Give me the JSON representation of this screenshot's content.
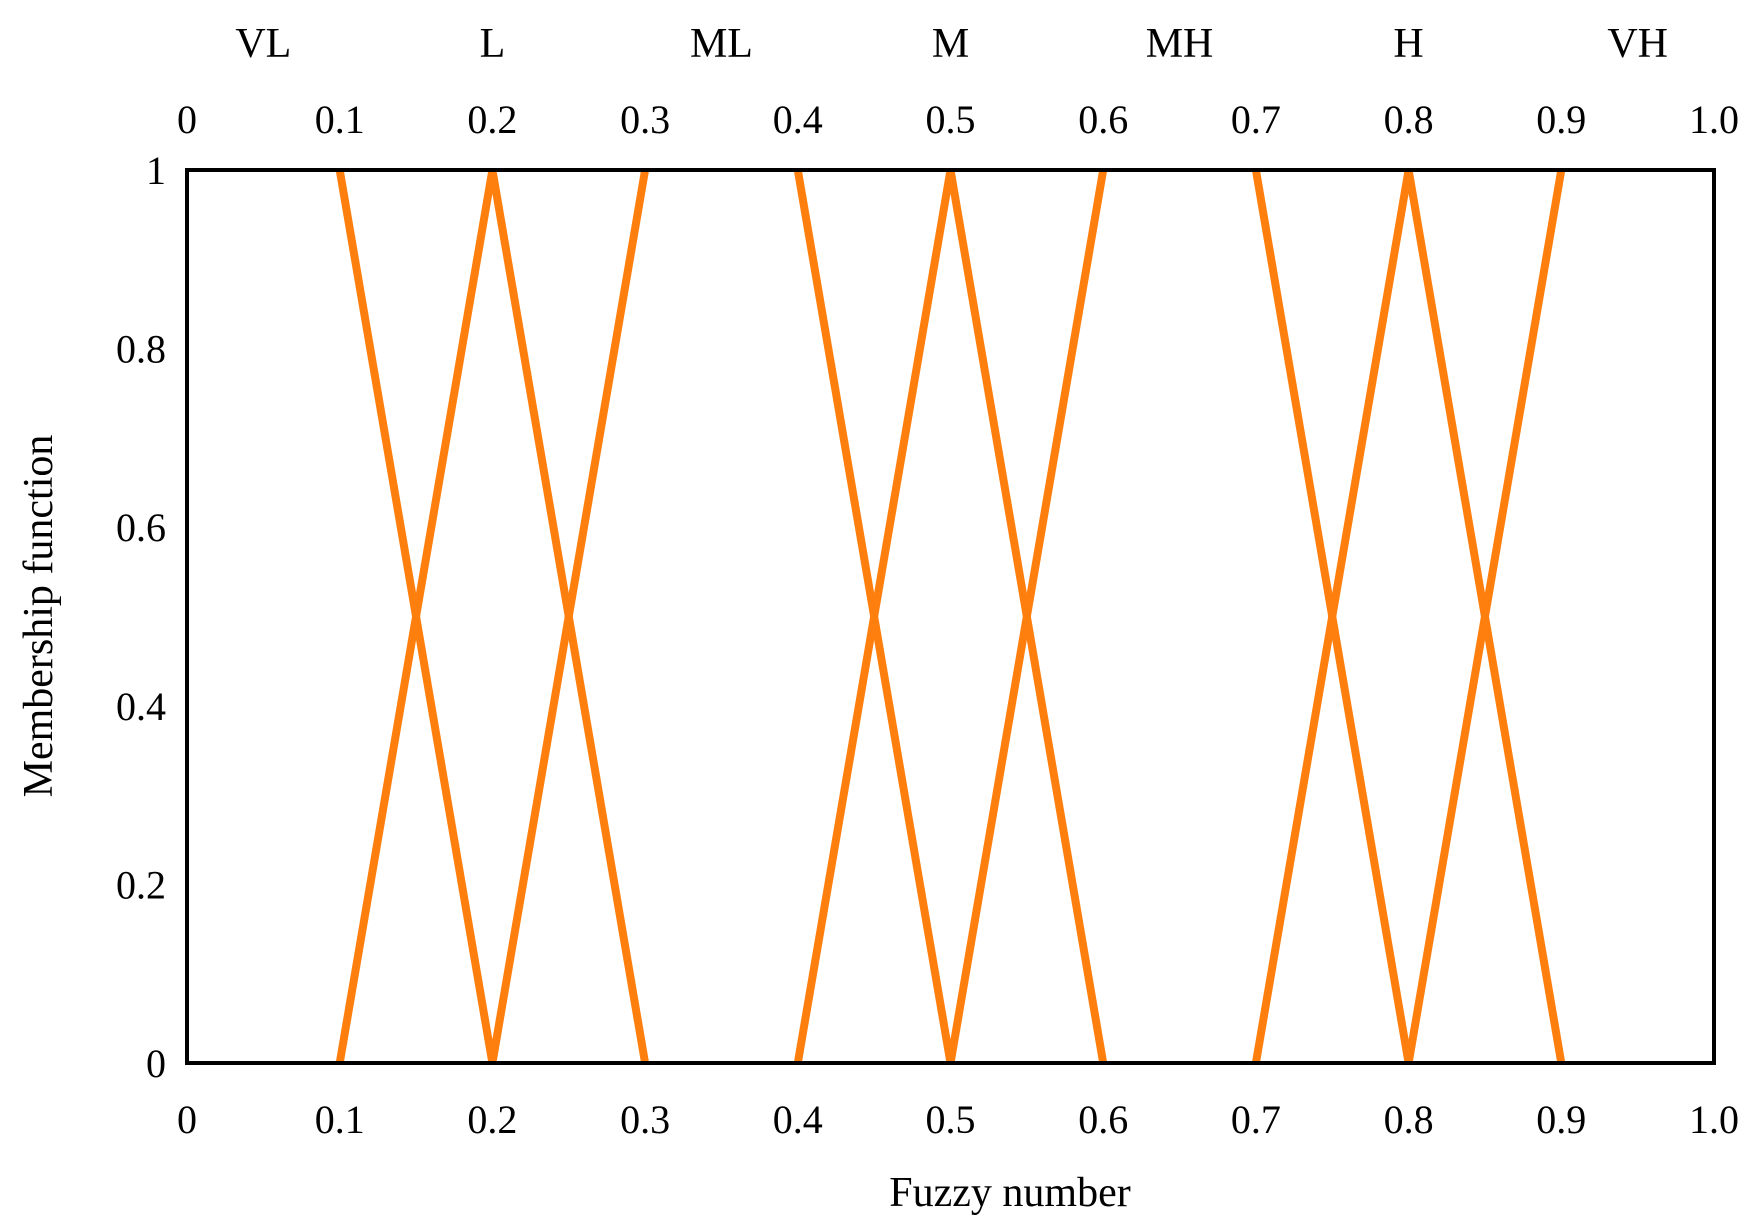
{
  "chart_data": {
    "type": "line",
    "title": "",
    "xlabel": "Fuzzy number",
    "ylabel": "Membership function",
    "xlim": [
      0,
      1.0
    ],
    "ylim": [
      0,
      1
    ],
    "grid": false,
    "x_ticks": [
      "0",
      "0.1",
      "0.2",
      "0.3",
      "0.4",
      "0.5",
      "0.6",
      "0.7",
      "0.8",
      "0.9",
      "1.0"
    ],
    "y_ticks": [
      "0",
      "0.2",
      "0.4",
      "0.6",
      "0.8",
      "1"
    ],
    "top_x_ticks": [
      "0",
      "0.1",
      "0.2",
      "0.3",
      "0.4",
      "0.5",
      "0.6",
      "0.7",
      "0.8",
      "0.9",
      "1.0"
    ],
    "categories": [
      {
        "label": "VL",
        "x": 0.05
      },
      {
        "label": "L",
        "x": 0.2
      },
      {
        "label": "ML",
        "x": 0.35
      },
      {
        "label": "M",
        "x": 0.5
      },
      {
        "label": "MH",
        "x": 0.65
      },
      {
        "label": "H",
        "x": 0.8
      },
      {
        "label": "VH",
        "x": 0.95
      }
    ],
    "line_color": "#FF7F0E",
    "series": [
      {
        "points": [
          [
            0.1,
            1
          ],
          [
            0.2,
            0
          ]
        ]
      },
      {
        "points": [
          [
            0.1,
            0
          ],
          [
            0.2,
            1
          ],
          [
            0.3,
            0
          ]
        ]
      },
      {
        "points": [
          [
            0.2,
            0
          ],
          [
            0.3,
            1
          ]
        ]
      },
      {
        "points": [
          [
            0.4,
            1
          ],
          [
            0.5,
            0
          ]
        ]
      },
      {
        "points": [
          [
            0.4,
            0
          ],
          [
            0.5,
            1
          ],
          [
            0.6,
            0
          ]
        ]
      },
      {
        "points": [
          [
            0.5,
            0
          ],
          [
            0.6,
            1
          ]
        ]
      },
      {
        "points": [
          [
            0.7,
            1
          ],
          [
            0.8,
            0
          ]
        ]
      },
      {
        "points": [
          [
            0.7,
            0
          ],
          [
            0.8,
            1
          ],
          [
            0.9,
            0
          ]
        ]
      },
      {
        "points": [
          [
            0.8,
            0
          ],
          [
            0.9,
            1
          ]
        ]
      }
    ]
  }
}
